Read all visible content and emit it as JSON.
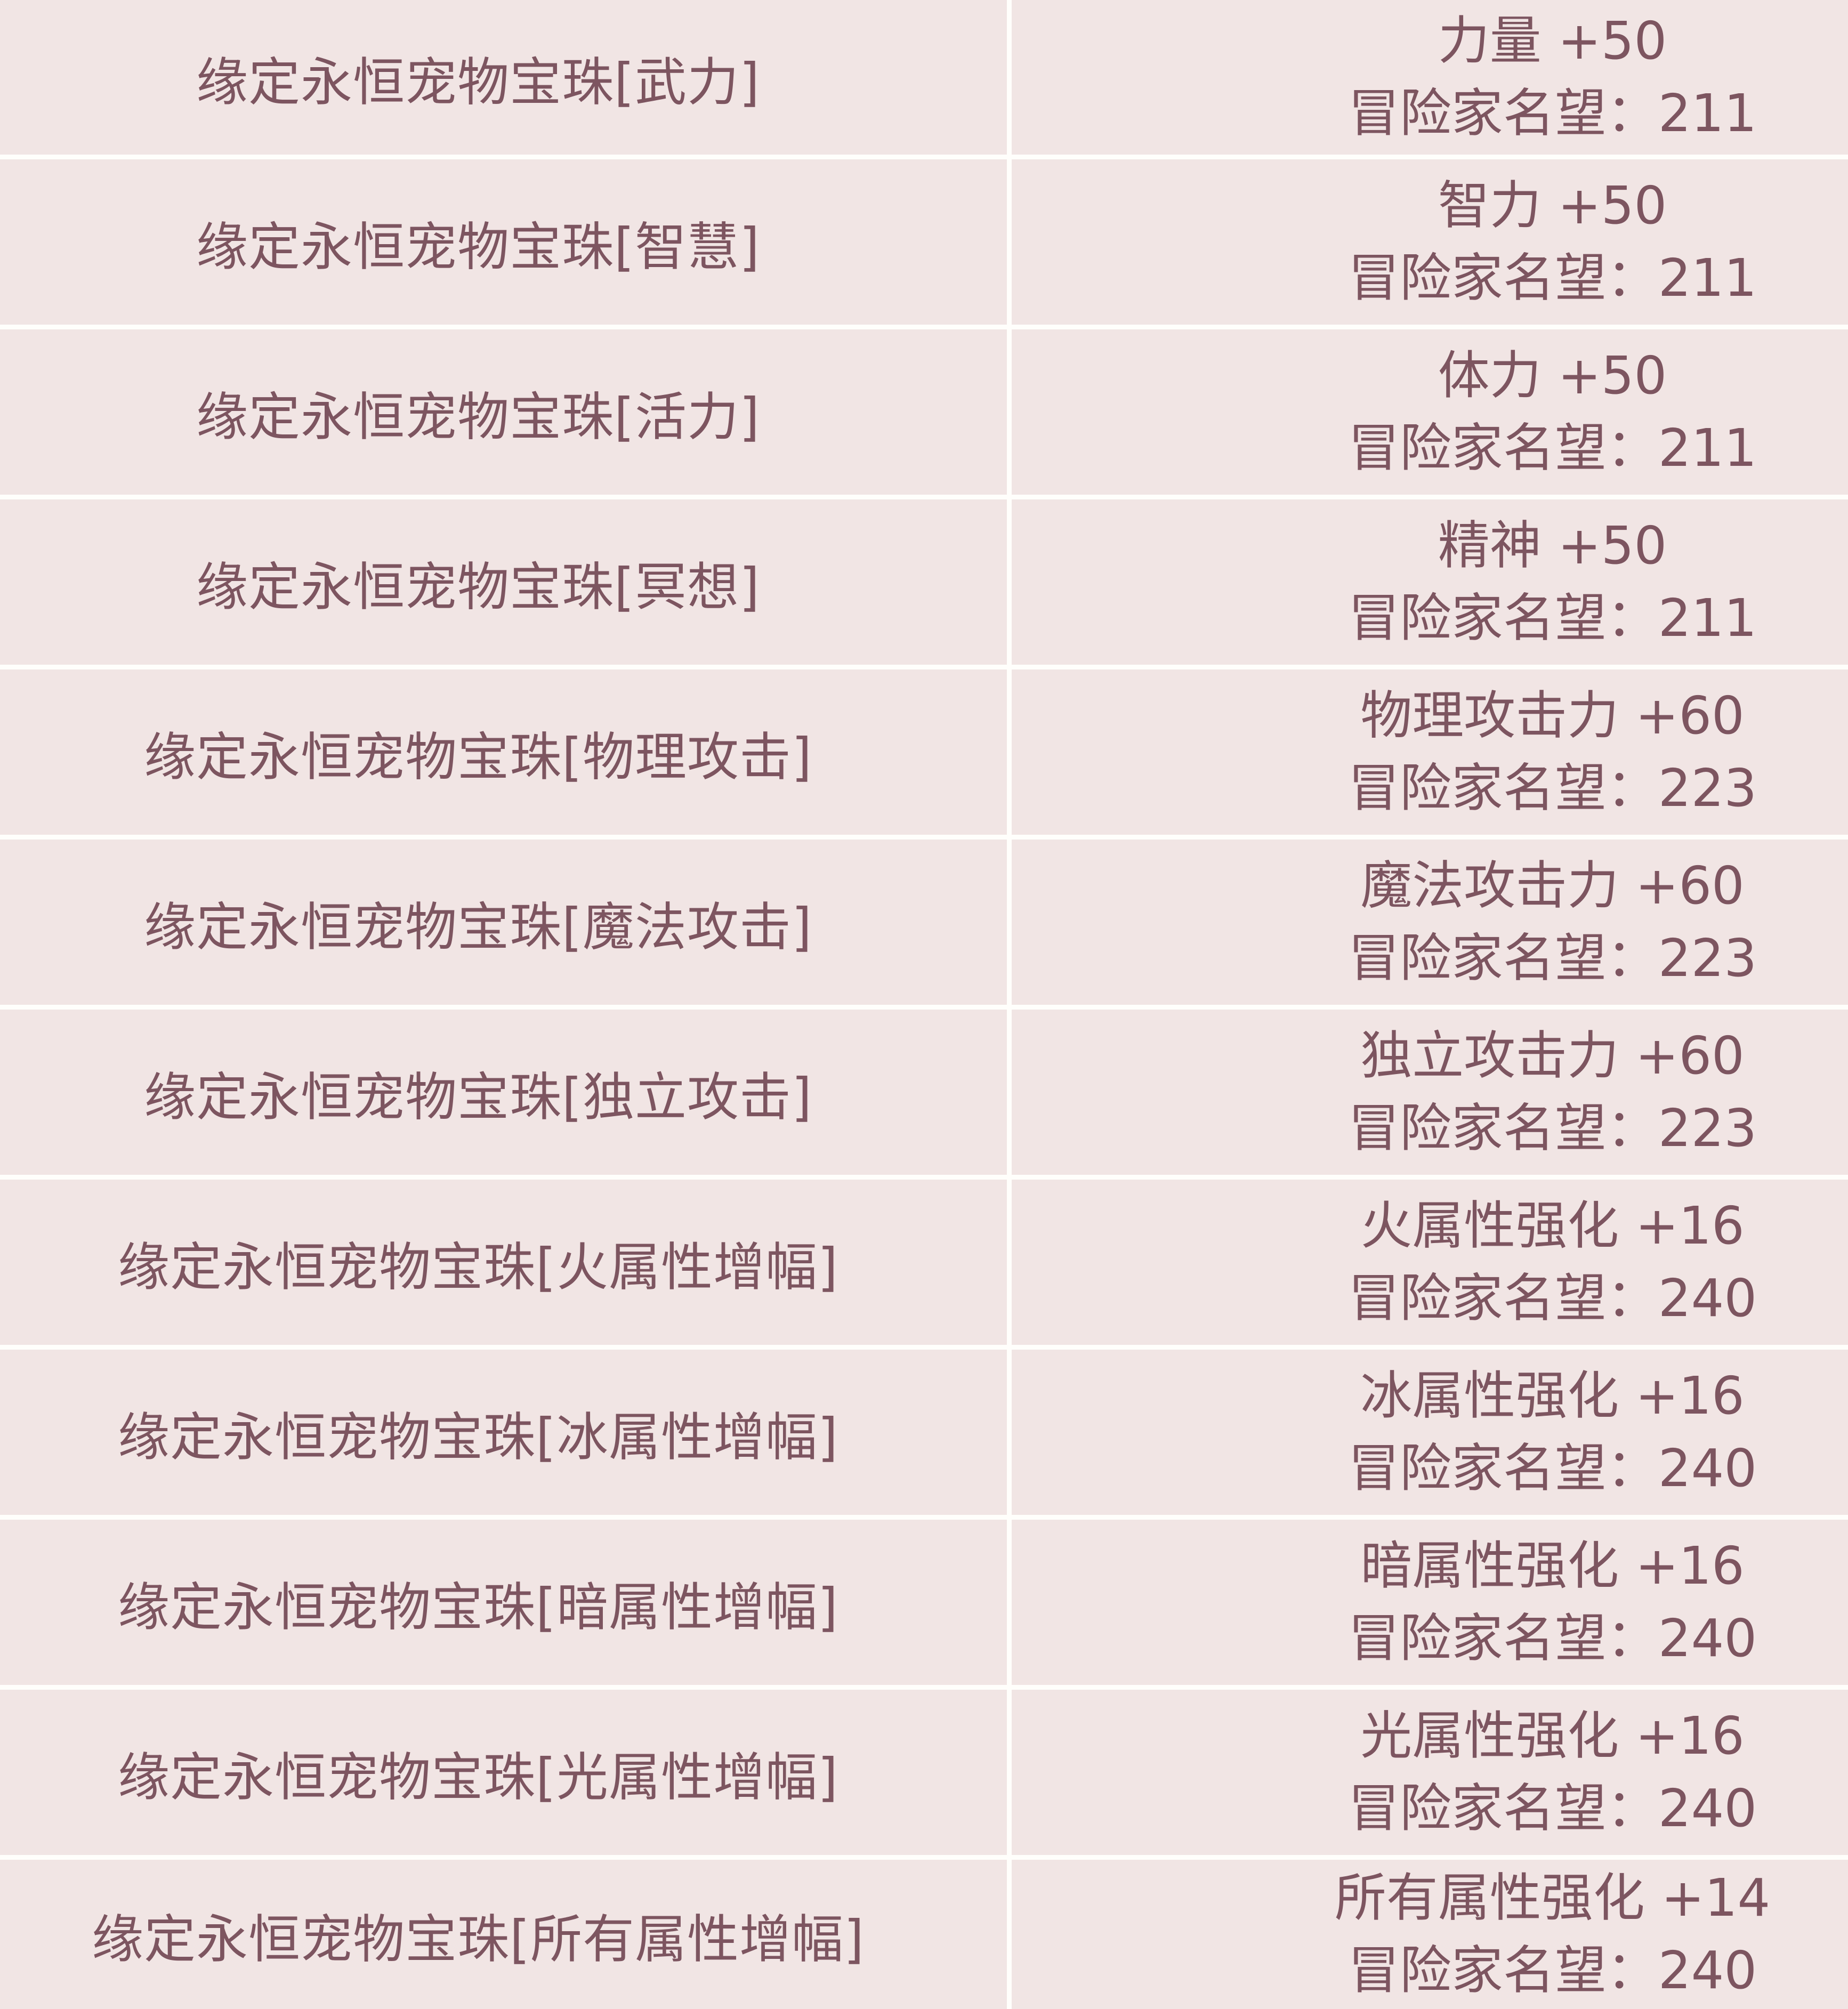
{
  "colors": {
    "background": "#f1e5e4",
    "divider": "#fffefb",
    "text": "#7d5560"
  },
  "table": {
    "columns": [
      "item_name",
      "item_stats"
    ],
    "rows": [
      {
        "item": "缘定永恒宠物宝珠[武力]",
        "stat": "力量 +50",
        "fame": "冒险家名望：211"
      },
      {
        "item": "缘定永恒宠物宝珠[智慧]",
        "stat": "智力 +50",
        "fame": "冒险家名望：211"
      },
      {
        "item": "缘定永恒宠物宝珠[活力]",
        "stat": "体力 +50",
        "fame": "冒险家名望：211"
      },
      {
        "item": "缘定永恒宠物宝珠[冥想]",
        "stat": "精神 +50",
        "fame": "冒险家名望：211"
      },
      {
        "item": "缘定永恒宠物宝珠[物理攻击]",
        "stat": "物理攻击力 +60",
        "fame": "冒险家名望：223"
      },
      {
        "item": "缘定永恒宠物宝珠[魔法攻击]",
        "stat": "魔法攻击力 +60",
        "fame": "冒险家名望：223"
      },
      {
        "item": "缘定永恒宠物宝珠[独立攻击]",
        "stat": "独立攻击力 +60",
        "fame": "冒险家名望：223"
      },
      {
        "item": "缘定永恒宠物宝珠[火属性增幅]",
        "stat": "火属性强化 +16",
        "fame": "冒险家名望：240"
      },
      {
        "item": "缘定永恒宠物宝珠[冰属性增幅]",
        "stat": "冰属性强化 +16",
        "fame": "冒险家名望：240"
      },
      {
        "item": "缘定永恒宠物宝珠[暗属性增幅]",
        "stat": "暗属性强化 +16",
        "fame": "冒险家名望：240"
      },
      {
        "item": "缘定永恒宠物宝珠[光属性增幅]",
        "stat": "光属性强化 +16",
        "fame": "冒险家名望：240"
      },
      {
        "item": "缘定永恒宠物宝珠[所有属性增幅]",
        "stat": "所有属性强化 +14",
        "fame": "冒险家名望：240"
      }
    ]
  }
}
